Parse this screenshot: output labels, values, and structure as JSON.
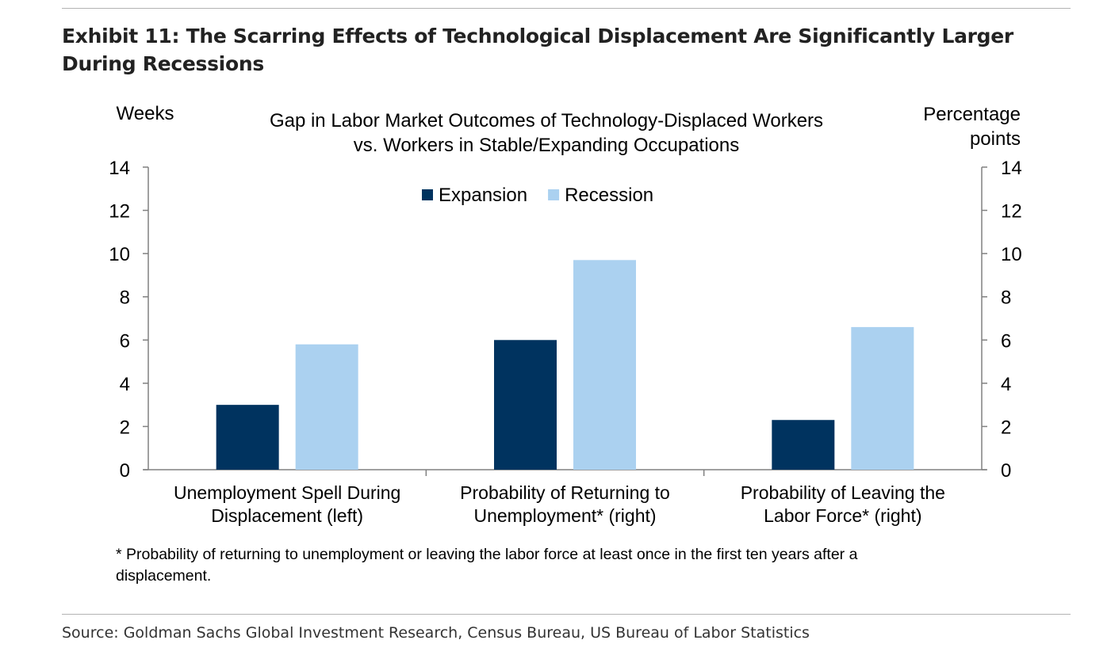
{
  "exhibit_title": "Exhibit 11: The Scarring Effects of Technological Displacement Are Significantly Larger During Recessions",
  "source": "Source: Goldman Sachs Global Investment Research, Census Bureau, US Bureau of Labor Statistics",
  "chart_data": {
    "type": "bar",
    "title_lines": [
      "Gap in Labor Market Outcomes of Technology-Displaced Workers",
      "vs. Workers in Stable/Expanding Occupations"
    ],
    "left_axis_label": [
      "Weeks"
    ],
    "right_axis_label": [
      "Percentage",
      "points"
    ],
    "ylim": [
      0,
      14
    ],
    "yticks": [
      0,
      2,
      4,
      6,
      8,
      10,
      12,
      14
    ],
    "categories": [
      [
        "Unemployment Spell During",
        "Displacement (left)"
      ],
      [
        "Probability of Returning to",
        "Unemployment* (right)"
      ],
      [
        "Probability of Leaving the",
        "Labor Force* (right)"
      ]
    ],
    "series": [
      {
        "name": "Expansion",
        "color": "#00335f",
        "values": [
          3.0,
          6.0,
          2.3
        ]
      },
      {
        "name": "Recession",
        "color": "#abd1f0",
        "values": [
          5.8,
          9.7,
          6.6
        ]
      }
    ],
    "legend_position": "top-center",
    "grid": false,
    "footnote_lines": [
      "* Probability of returning to unemployment or leaving the labor force at least once in the first ten years after a",
      "displacement."
    ]
  }
}
